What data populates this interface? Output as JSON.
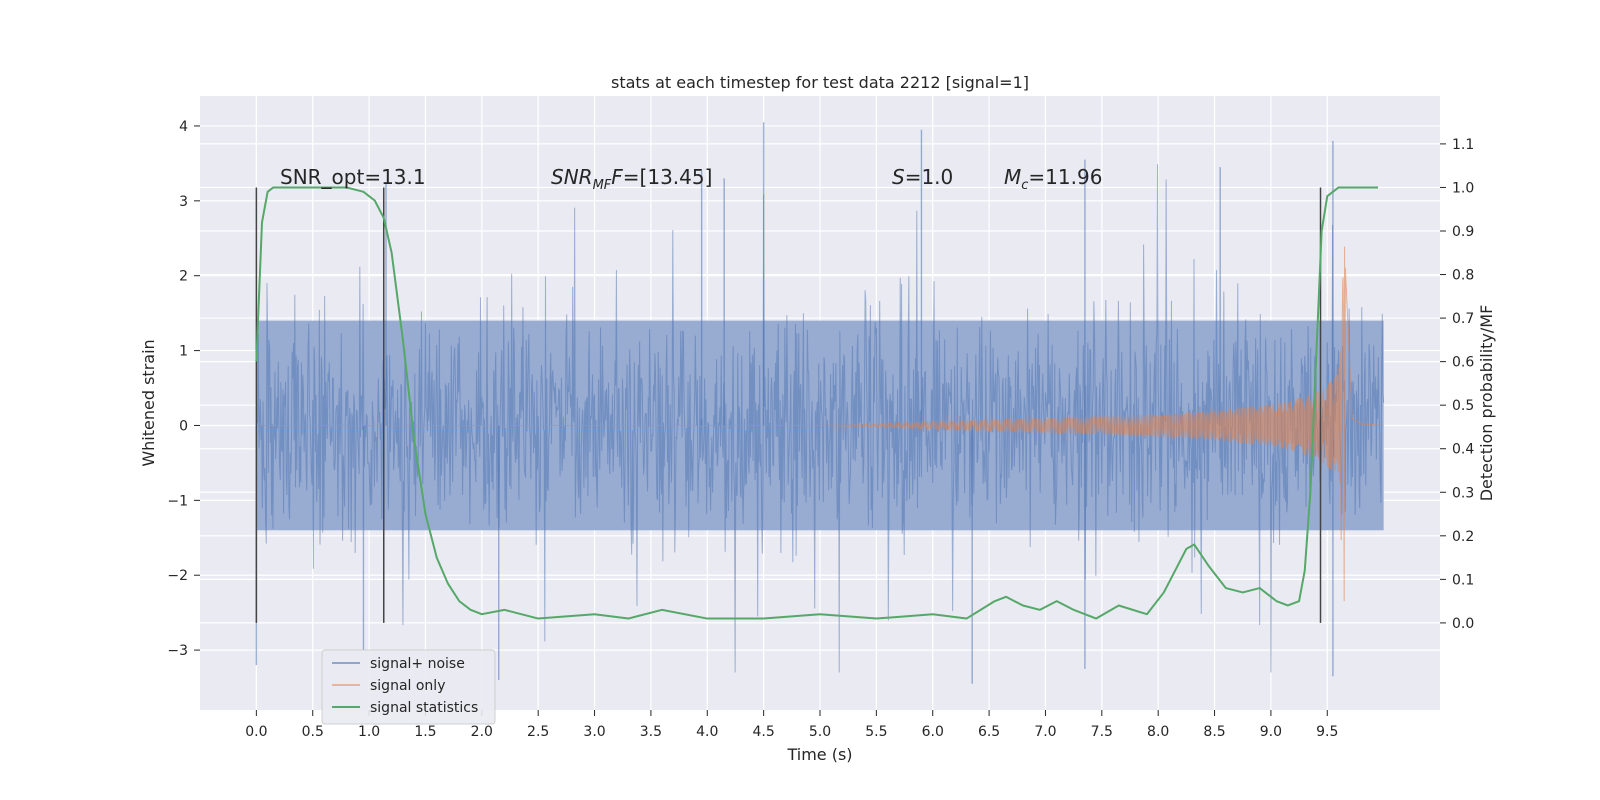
{
  "chart_data": {
    "type": "line",
    "title": "stats at each timestep for test data 2212 [signal=1]",
    "xlabel": "Time (s)",
    "ylabel": "Whitened strain",
    "y2label": "Detection probability/MF",
    "xlim": [
      -0.5,
      10.5
    ],
    "ylim": [
      -3.8,
      4.4
    ],
    "y2lim": [
      -0.2,
      1.21
    ],
    "x_ticks": [
      "0.0",
      "0.5",
      "1.0",
      "1.5",
      "2.0",
      "2.5",
      "3.0",
      "3.5",
      "4.0",
      "4.5",
      "5.0",
      "5.5",
      "6.0",
      "6.5",
      "7.0",
      "7.5",
      "8.0",
      "8.5",
      "9.0",
      "9.5"
    ],
    "y_ticks": [
      "4",
      "3",
      "2",
      "1",
      "0",
      "−1",
      "−2",
      "−3"
    ],
    "y2_ticks": [
      "1.1",
      "1.0",
      "0.9",
      "0.8",
      "0.7",
      "0.6",
      "0.5",
      "0.4",
      "0.3",
      "0.2",
      "0.1",
      "0.0"
    ],
    "grid": true,
    "legend_position": "lower-left",
    "annotations": {
      "snr_opt": "SNR_opt=13.1",
      "snr_mf_sym": "SNR",
      "snr_mf_sub": "MF",
      "snr_mf_val": "=[13.45]",
      "s_sym": "S",
      "s_val": "=1.0",
      "mc_sym": "M",
      "mc_sub": "c",
      "mc_val": "=11.96"
    },
    "vlines_x": [
      0.0,
      1.13,
      9.44
    ],
    "series": [
      {
        "name": "signal+ noise",
        "color": "#4c72b0",
        "axis": "left",
        "description_values": {
          "t_start": 0.0,
          "t_end": 10.0,
          "typical_amplitude": 1.4,
          "max_peak": 4.05,
          "min_peak": -3.4
        }
      },
      {
        "name": "signal only",
        "color": "#dd8452",
        "axis": "left",
        "envelope": {
          "t": [
            0.0,
            5.0,
            5.5,
            6.0,
            6.5,
            7.0,
            7.5,
            8.0,
            8.5,
            9.0,
            9.2,
            9.4,
            9.5,
            9.6,
            9.65,
            9.68,
            9.72,
            9.8,
            10.0
          ],
          "amp": [
            0.0,
            0.0,
            0.02,
            0.05,
            0.08,
            0.1,
            0.12,
            0.15,
            0.2,
            0.28,
            0.35,
            0.45,
            0.55,
            0.7,
            2.5,
            1.5,
            0.1,
            0.02,
            0.0
          ]
        }
      },
      {
        "name": "signal statistics",
        "color": "#55a868",
        "axis": "right",
        "x": [
          0.0,
          0.05,
          0.1,
          0.15,
          0.25,
          0.4,
          0.6,
          0.8,
          0.95,
          1.05,
          1.13,
          1.2,
          1.3,
          1.4,
          1.5,
          1.6,
          1.7,
          1.8,
          1.9,
          2.0,
          2.2,
          2.5,
          3.0,
          3.3,
          3.6,
          4.0,
          4.5,
          5.0,
          5.5,
          6.0,
          6.3,
          6.55,
          6.65,
          6.8,
          6.95,
          7.1,
          7.25,
          7.45,
          7.65,
          7.9,
          8.05,
          8.15,
          8.25,
          8.32,
          8.45,
          8.6,
          8.75,
          8.9,
          9.05,
          9.15,
          9.25,
          9.3,
          9.35,
          9.4,
          9.45,
          9.5,
          9.6,
          9.7,
          9.8,
          9.95
        ],
        "y": [
          0.6,
          0.92,
          0.99,
          1.0,
          1.0,
          1.0,
          1.0,
          1.0,
          0.99,
          0.97,
          0.93,
          0.85,
          0.65,
          0.42,
          0.25,
          0.15,
          0.09,
          0.05,
          0.03,
          0.02,
          0.03,
          0.01,
          0.02,
          0.01,
          0.03,
          0.01,
          0.01,
          0.02,
          0.01,
          0.02,
          0.01,
          0.05,
          0.06,
          0.04,
          0.03,
          0.05,
          0.03,
          0.01,
          0.04,
          0.02,
          0.07,
          0.12,
          0.17,
          0.18,
          0.13,
          0.08,
          0.07,
          0.08,
          0.05,
          0.04,
          0.05,
          0.12,
          0.3,
          0.6,
          0.9,
          0.98,
          1.0,
          1.0,
          1.0,
          1.0
        ]
      }
    ]
  }
}
